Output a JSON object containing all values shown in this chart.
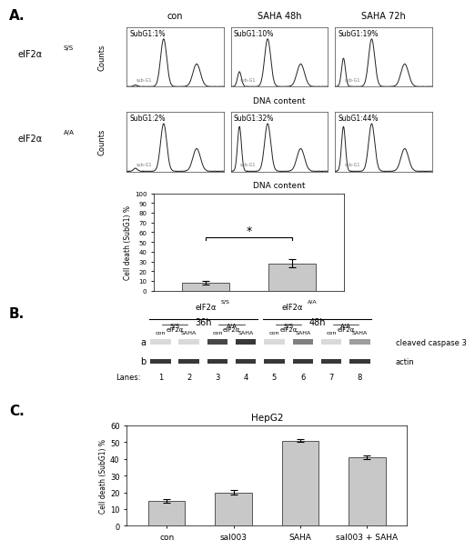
{
  "section_A_label": "A.",
  "section_B_label": "B.",
  "section_C_label": "C.",
  "flow_col_labels": [
    "con",
    "SAHA 48h",
    "SAHA 72h"
  ],
  "row1_subG1": [
    "SubG1:1%",
    "SubG1:10%",
    "SubG1:19%"
  ],
  "row2_subG1": [
    "SubG1:2%",
    "SubG1:32%",
    "SubG1:44%"
  ],
  "dna_content_label": "DNA content",
  "counts_label": "Counts",
  "bar_chart_A_values": [
    8,
    28
  ],
  "bar_chart_A_errors": [
    2,
    4
  ],
  "bar_chart_A_ylabel": "Cell death (SubG1) %",
  "bar_chart_A_yticks": [
    0,
    10,
    20,
    30,
    40,
    50,
    60,
    70,
    80,
    90,
    100
  ],
  "bar_chart_A_color": "#c8c8c8",
  "western_blot_cleaved": "cleaved caspase 3",
  "western_blot_actin": "actin",
  "western_blot_lanes": [
    "1",
    "2",
    "3",
    "4",
    "5",
    "6",
    "7",
    "8"
  ],
  "bar_chart_C_title": "HepG2",
  "bar_chart_C_categories": [
    "con",
    "sal003",
    "SAHA",
    "sal003 + SAHA"
  ],
  "bar_chart_C_values": [
    15,
    20,
    51,
    41
  ],
  "bar_chart_C_errors": [
    1,
    1.5,
    1,
    1
  ],
  "bar_chart_C_ylabel": "Cell death (SubG1) %",
  "bar_chart_C_ylim": [
    0,
    60
  ],
  "bar_chart_C_yticks": [
    0,
    10,
    20,
    30,
    40,
    50,
    60
  ],
  "bar_chart_C_color": "#c8c8c8",
  "background_color": "#ffffff",
  "bar_edge_color": "#555555",
  "text_color": "#000000"
}
